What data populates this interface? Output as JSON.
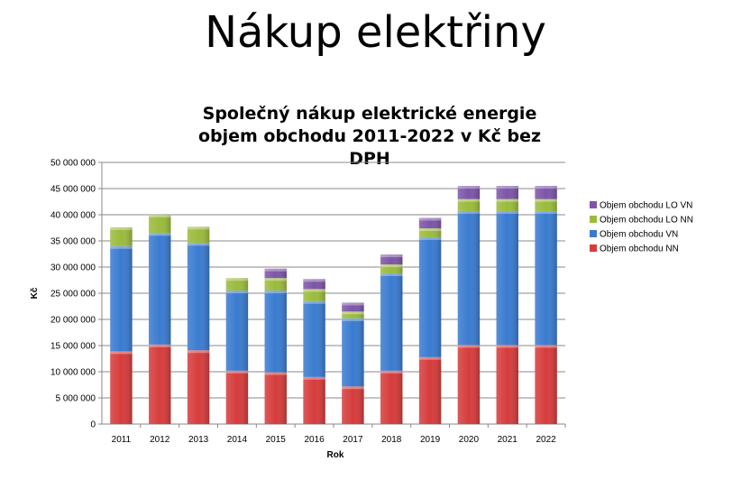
{
  "slide_title": "Nákup elektřiny",
  "chart_data": {
    "type": "bar",
    "stacked": true,
    "title_line1": "Společný nákup elektrické energie",
    "title_line2": "objem obchodu 2011-2022 v Kč bez DPH",
    "xlabel": "Rok",
    "ylabel": "Kč",
    "ylim": [
      0,
      50000000
    ],
    "yticks": [
      0,
      5000000,
      10000000,
      15000000,
      20000000,
      25000000,
      30000000,
      35000000,
      40000000,
      45000000,
      50000000
    ],
    "ytick_labels": [
      "0",
      "5 000 000",
      "10 000 000",
      "15 000 000",
      "20 000 000",
      "25 000 000",
      "30 000 000",
      "35 000 000",
      "40 000 000",
      "45 000 000",
      "50 000 000"
    ],
    "grid": true,
    "legend_position": "right",
    "categories": [
      "2011",
      "2012",
      "2013",
      "2014",
      "2015",
      "2016",
      "2017",
      "2018",
      "2019",
      "2020",
      "2021",
      "2022"
    ],
    "series": [
      {
        "name": "Objem obchodu NN",
        "color": "#d63c3c",
        "values": [
          13900000,
          15200000,
          14100000,
          10200000,
          9900000,
          9000000,
          7200000,
          10200000,
          12800000,
          15100000,
          15100000,
          15100000
        ]
      },
      {
        "name": "Objem obchodu VN",
        "color": "#3a7bd0",
        "values": [
          20100000,
          21300000,
          20500000,
          15300000,
          15600000,
          14500000,
          13000000,
          18600000,
          22900000,
          25600000,
          25600000,
          25600000
        ]
      },
      {
        "name": "Objem obchodu LO NN",
        "color": "#9bbb3c",
        "values": [
          3600000,
          3500000,
          3100000,
          2400000,
          2400000,
          2300000,
          1300000,
          1700000,
          1700000,
          2300000,
          2300000,
          2300000
        ]
      },
      {
        "name": "Objem obchodu LO VN",
        "color": "#7d55a8",
        "values": [
          0,
          0,
          0,
          0,
          1800000,
          1900000,
          1700000,
          1900000,
          2000000,
          2500000,
          2500000,
          2500000
        ]
      }
    ]
  }
}
